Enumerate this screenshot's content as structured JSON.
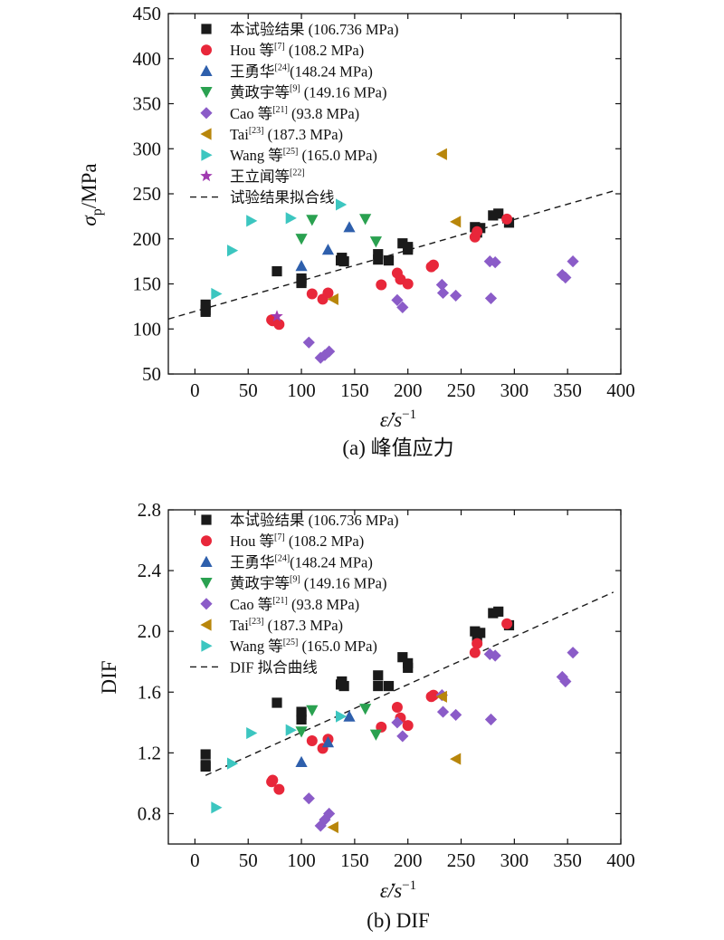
{
  "chart_data": [
    {
      "type": "scatter",
      "panel": "a",
      "caption": "(a) 峰值应力",
      "xlabel": "ε̇/s",
      "xlabel_sup": "−1",
      "ylabel": "σ",
      "ylabel_sub": "p",
      "ylabel_unit": "/MPa",
      "xlim": [
        -25,
        400
      ],
      "ylim": [
        50,
        450
      ],
      "xticks": [
        "0",
        "50",
        "100",
        "150",
        "200",
        "250",
        "300",
        "350",
        "400"
      ],
      "yticks": [
        "50",
        "100",
        "150",
        "200",
        "250",
        "300",
        "350",
        "400",
        "450"
      ],
      "legend_position": "top-left",
      "series": [
        {
          "name": "本试验结果 (106.736 MPa)",
          "marker": "square",
          "color": "#1a1a1a",
          "points": [
            [
              10,
              119
            ],
            [
              10,
              121
            ],
            [
              10,
              127
            ],
            [
              77,
              164
            ],
            [
              100,
              151
            ],
            [
              100,
              153
            ],
            [
              100,
              156
            ],
            [
              137,
              176
            ],
            [
              138,
              179
            ],
            [
              140,
              175
            ],
            [
              172,
              183
            ],
            [
              172,
              177
            ],
            [
              182,
              176
            ],
            [
              195,
              195
            ],
            [
              200,
              188
            ],
            [
              200,
              191
            ],
            [
              263,
              213
            ],
            [
              265,
              207
            ],
            [
              268,
              212
            ],
            [
              280,
              226
            ],
            [
              285,
              228
            ],
            [
              295,
              218
            ]
          ]
        },
        {
          "name": "Hou 等",
          "name_sup": "[7]",
          "name_tail": " (108.2 MPa)",
          "marker": "circle",
          "color": "#e8273a",
          "points": [
            [
              72,
              110
            ],
            [
              73,
              109
            ],
            [
              79,
              105
            ],
            [
              110,
              139
            ],
            [
              120,
              133
            ],
            [
              125,
              140
            ],
            [
              175,
              149
            ],
            [
              190,
              162
            ],
            [
              193,
              155
            ],
            [
              200,
              150
            ],
            [
              222,
              169
            ],
            [
              224,
              171
            ],
            [
              263,
              202
            ],
            [
              265,
              208
            ],
            [
              293,
              222
            ]
          ]
        },
        {
          "name": "王勇华",
          "name_sup": "[24]",
          "name_tail": "(148.24 MPa)",
          "marker": "triangle-up",
          "color": "#2e5fac",
          "points": [
            [
              100,
              170
            ],
            [
              125,
              188
            ],
            [
              145,
              213
            ]
          ]
        },
        {
          "name": "黄政宇等",
          "name_sup": "[9]",
          "name_tail": " (149.16 MPa)",
          "marker": "triangle-down",
          "color": "#2aa150",
          "points": [
            [
              100,
              200
            ],
            [
              110,
              221
            ],
            [
              160,
              222
            ],
            [
              170,
              197
            ]
          ]
        },
        {
          "name": "Cao 等",
          "name_sup": "[21]",
          "name_tail": " (93.8 MPa)",
          "marker": "diamond",
          "color": "#8b5cc8",
          "points": [
            [
              107,
              85
            ],
            [
              118,
              68
            ],
            [
              122,
              71
            ],
            [
              126,
              75
            ],
            [
              190,
              132
            ],
            [
              195,
              124
            ],
            [
              232,
              149
            ],
            [
              233,
              140
            ],
            [
              245,
              137
            ],
            [
              277,
              175
            ],
            [
              278,
              134
            ],
            [
              282,
              174
            ],
            [
              345,
              160
            ],
            [
              348,
              157
            ],
            [
              355,
              175
            ]
          ]
        },
        {
          "name": "Tai",
          "name_sup": "[23]",
          "name_tail": " (187.3 MPa)",
          "marker": "triangle-left",
          "color": "#b8860b",
          "points": [
            [
              130,
              133
            ],
            [
              232,
              294
            ],
            [
              245,
              219
            ]
          ]
        },
        {
          "name": "Wang 等",
          "name_sup": "[25]",
          "name_tail": " (165.0 MPa)",
          "marker": "triangle-right",
          "color": "#3cc6c0",
          "points": [
            [
              20,
              139
            ],
            [
              35,
              187
            ],
            [
              53,
              220
            ],
            [
              90,
              223
            ],
            [
              137,
              238
            ]
          ]
        },
        {
          "name": "王立闻等",
          "name_sup": "[22]",
          "name_tail": "",
          "marker": "star",
          "color": "#a03ab0",
          "points": [
            [
              77,
              114
            ]
          ]
        },
        {
          "name": "试验结果拟合线",
          "marker": "dashed-line",
          "color": "#1a1a1a",
          "line": {
            "intercept": 119.5,
            "slope": 0.34,
            "x_from": -25,
            "x_to": 393
          }
        }
      ]
    },
    {
      "type": "scatter",
      "panel": "b",
      "caption": "(b) DIF",
      "xlabel": "ε̇/s",
      "xlabel_sup": "−1",
      "ylabel": "DIF",
      "xlim": [
        -25,
        400
      ],
      "ylim": [
        0.6,
        2.8
      ],
      "xticks": [
        "0",
        "50",
        "100",
        "150",
        "200",
        "250",
        "300",
        "350",
        "400"
      ],
      "yticks": [
        "0.8",
        "1.2",
        "1.6",
        "2.0",
        "2.4",
        "2.8"
      ],
      "legend_position": "top-left",
      "series": [
        {
          "name": "本试验结果 (106.736 MPa)",
          "marker": "square",
          "color": "#1a1a1a",
          "points": [
            [
              10,
              1.11
            ],
            [
              10,
              1.12
            ],
            [
              10,
              1.19
            ],
            [
              77,
              1.53
            ],
            [
              100,
              1.42
            ],
            [
              100,
              1.45
            ],
            [
              100,
              1.47
            ],
            [
              137,
              1.65
            ],
            [
              138,
              1.67
            ],
            [
              140,
              1.64
            ],
            [
              172,
              1.71
            ],
            [
              172,
              1.64
            ],
            [
              182,
              1.64
            ],
            [
              195,
              1.83
            ],
            [
              200,
              1.76
            ],
            [
              200,
              1.79
            ],
            [
              263,
              2.0
            ],
            [
              265,
              1.94
            ],
            [
              268,
              1.99
            ],
            [
              280,
              2.12
            ],
            [
              285,
              2.13
            ],
            [
              295,
              2.04
            ]
          ]
        },
        {
          "name": "Hou 等",
          "name_sup": "[7]",
          "name_tail": " (108.2 MPa)",
          "marker": "circle",
          "color": "#e8273a",
          "points": [
            [
              72,
              1.01
            ],
            [
              73,
              1.02
            ],
            [
              79,
              0.96
            ],
            [
              110,
              1.28
            ],
            [
              120,
              1.23
            ],
            [
              125,
              1.29
            ],
            [
              175,
              1.37
            ],
            [
              190,
              1.5
            ],
            [
              193,
              1.43
            ],
            [
              200,
              1.38
            ],
            [
              222,
              1.57
            ],
            [
              224,
              1.58
            ],
            [
              263,
              1.86
            ],
            [
              265,
              1.92
            ],
            [
              293,
              2.05
            ]
          ]
        },
        {
          "name": "王勇华",
          "name_sup": "[24]",
          "name_tail": "(148.24 MPa)",
          "marker": "triangle-up",
          "color": "#2e5fac",
          "points": [
            [
              100,
              1.14
            ],
            [
              125,
              1.27
            ],
            [
              145,
              1.44
            ]
          ]
        },
        {
          "name": "黄政宇等",
          "name_sup": "[9]",
          "name_tail": " (149.16 MPa)",
          "marker": "triangle-down",
          "color": "#2aa150",
          "points": [
            [
              100,
              1.34
            ],
            [
              110,
              1.48
            ],
            [
              160,
              1.49
            ],
            [
              170,
              1.32
            ]
          ]
        },
        {
          "name": "Cao 等",
          "name_sup": "[21]",
          "name_tail": " (93.8 MPa)",
          "marker": "diamond",
          "color": "#8b5cc8",
          "points": [
            [
              107,
              0.9
            ],
            [
              118,
              0.72
            ],
            [
              122,
              0.76
            ],
            [
              126,
              0.8
            ],
            [
              190,
              1.4
            ],
            [
              195,
              1.31
            ],
            [
              232,
              1.58
            ],
            [
              233,
              1.47
            ],
            [
              245,
              1.45
            ],
            [
              277,
              1.85
            ],
            [
              278,
              1.42
            ],
            [
              282,
              1.84
            ],
            [
              345,
              1.7
            ],
            [
              348,
              1.67
            ],
            [
              355,
              1.86
            ]
          ]
        },
        {
          "name": "Tai",
          "name_sup": "[23]",
          "name_tail": " (187.3 MPa)",
          "marker": "triangle-left",
          "color": "#b8860b",
          "points": [
            [
              130,
              0.71
            ],
            [
              232,
              1.57
            ],
            [
              245,
              1.16
            ]
          ]
        },
        {
          "name": "Wang 等",
          "name_sup": "[25]",
          "name_tail": " (165.0 MPa)",
          "marker": "triangle-right",
          "color": "#3cc6c0",
          "points": [
            [
              20,
              0.84
            ],
            [
              35,
              1.13
            ],
            [
              53,
              1.33
            ],
            [
              90,
              1.35
            ],
            [
              137,
              1.44
            ]
          ]
        },
        {
          "name": "DIF 拟合曲线",
          "marker": "dashed-line",
          "color": "#1a1a1a",
          "line": {
            "intercept": 1.02,
            "slope": 0.00315,
            "x_from": 10,
            "x_to": 393
          }
        }
      ]
    }
  ]
}
